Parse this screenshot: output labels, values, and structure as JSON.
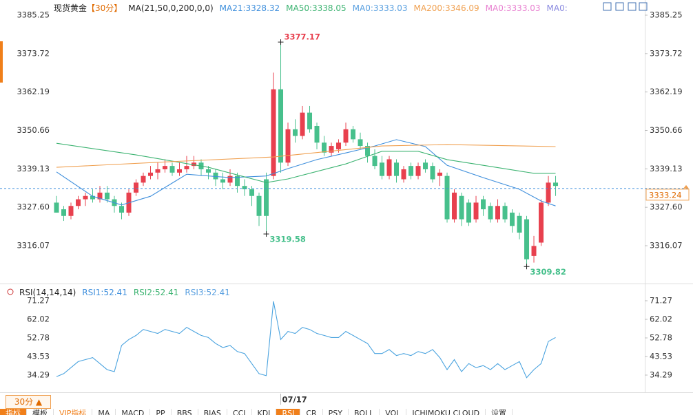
{
  "chart_data": [
    {
      "type": "candlestick",
      "title": "现货黄金",
      "period_label": "【30分】",
      "ma_label": "MA(21,50,0,200,0,0)",
      "legend": [
        {
          "text": "MA21:3328.32",
          "color": "#3f8fdc"
        },
        {
          "text": "MA50:3338.05",
          "color": "#3cb371"
        },
        {
          "text": "MA0:3333.03",
          "color": "#5aa0e0"
        },
        {
          "text": "MA200:3346.09",
          "color": "#f0a050"
        },
        {
          "text": "MA0:3333.03",
          "color": "#e87fd0"
        },
        {
          "text": "MA0:",
          "color": "#8a8ae0"
        }
      ],
      "up_color": "#e8404e",
      "down_color": "#47c08c",
      "candles": {
        "open": [
          3329,
          3327,
          3325,
          3328,
          3330,
          3331,
          3330,
          3332,
          3330,
          3328,
          3326,
          3332,
          3335,
          3337,
          3338,
          3339,
          3340,
          3338,
          3339,
          3340,
          3341,
          3339,
          3338,
          3336,
          3335,
          3337,
          3334,
          3333,
          3331,
          3336,
          3337,
          3363,
          3341,
          3351,
          3349,
          3356,
          3352,
          3347,
          3344,
          3345,
          3347,
          3351,
          3348,
          3346,
          3343,
          3341,
          3337,
          3341,
          3336,
          3340,
          3337,
          3341,
          3340,
          3337,
          3337,
          3324,
          3331,
          3329,
          3324,
          3330,
          3328,
          3324,
          3328,
          3326,
          3325,
          3324,
          3313,
          3317,
          3329,
          3335
        ],
        "high": [
          3331,
          3328,
          3329,
          3331,
          3332,
          3333,
          3334,
          3334,
          3331,
          3329,
          3333,
          3336,
          3338,
          3340,
          3341,
          3342,
          3341,
          3341,
          3343,
          3343,
          3342,
          3340,
          3339,
          3338,
          3339,
          3338,
          3336,
          3334,
          3332,
          3338,
          3368,
          3377.17,
          3353,
          3354,
          3358,
          3358,
          3353,
          3349,
          3347,
          3348,
          3353,
          3352,
          3350,
          3347,
          3345,
          3343,
          3343,
          3342,
          3340,
          3341,
          3341,
          3342,
          3341,
          3339,
          3338,
          3333,
          3332,
          3330,
          3331,
          3331,
          3329,
          3330,
          3329,
          3327,
          3326,
          3325,
          3319,
          3330,
          3337,
          3337
        ],
        "low": [
          3326,
          3323.5,
          3324,
          3327,
          3328,
          3329,
          3329,
          3329,
          3326,
          3324,
          3325,
          3331,
          3334,
          3336,
          3336,
          3338,
          3337,
          3337,
          3338,
          3339,
          3337,
          3336,
          3334,
          3333,
          3334,
          3332,
          3331,
          3328,
          3322,
          3319.58,
          3336,
          3338,
          3340,
          3347,
          3348,
          3350,
          3345,
          3343,
          3343,
          3344,
          3346,
          3347,
          3345,
          3341,
          3339,
          3336,
          3336,
          3335,
          3335,
          3336,
          3336,
          3338,
          3335,
          3334,
          3323,
          3323,
          3322,
          3322,
          3323,
          3325,
          3323,
          3323,
          3323,
          3320,
          3318,
          3309.82,
          3311,
          3316,
          3328,
          3331
        ],
        "close": [
          3326,
          3325,
          3328,
          3330,
          3331,
          3330,
          3332,
          3330,
          3328,
          3326,
          3332,
          3335,
          3337,
          3338,
          3339,
          3340,
          3338,
          3339,
          3340,
          3341,
          3339,
          3338,
          3336,
          3335,
          3337,
          3334,
          3333,
          3331,
          3325,
          3325,
          3363,
          3341,
          3351,
          3349,
          3356,
          3351,
          3347,
          3344,
          3346,
          3347,
          3351,
          3348,
          3346,
          3343,
          3340,
          3337,
          3342,
          3337,
          3339,
          3337,
          3340,
          3339,
          3336,
          3338,
          3324,
          3332,
          3324,
          3323,
          3329,
          3327,
          3324,
          3328,
          3324,
          3322,
          3320,
          3312,
          3316,
          3329,
          3335,
          3334
        ]
      },
      "series": [
        {
          "color": "#3f8fdc",
          "x": [
            0,
            5,
            9,
            13,
            18,
            24,
            29,
            32,
            36,
            40,
            44,
            47,
            51,
            54,
            59,
            64,
            67,
            69
          ],
          "values": [
            3338.2,
            3330.9,
            3328.3,
            3330.9,
            3337.5,
            3336.5,
            3337,
            3339.2,
            3341.9,
            3343.9,
            3346,
            3347.9,
            3345.8,
            3340.2,
            3336.5,
            3333,
            3329.5,
            3328
          ]
        },
        {
          "color": "#3cb371",
          "x": [
            0,
            11,
            21,
            29,
            32,
            40,
            45,
            50,
            54,
            59,
            66,
            69
          ],
          "values": [
            3346.8,
            3343.3,
            3339.6,
            3335,
            3336.1,
            3340.6,
            3344.4,
            3344.4,
            3341.9,
            3340.2,
            3337.8,
            3337.8
          ]
        },
        {
          "color": "#f0a050",
          "x": [
            0,
            16,
            30,
            45,
            54,
            69
          ],
          "values": [
            3339.6,
            3341.3,
            3342.7,
            3346,
            3346.4,
            3345.8
          ]
        }
      ],
      "annotations": [
        {
          "x": 31,
          "value": 3377.17
        },
        {
          "x": 29,
          "value": 3319.58
        },
        {
          "x": 65,
          "value": 3309.82
        }
      ],
      "last_price": 3333.24,
      "xlim": [
        -7.81,
        81.33
      ],
      "ylim": [
        3305.13,
        3389.79
      ],
      "yticks": [
        3385.25,
        3373.72,
        3362.19,
        3350.66,
        3339.13,
        {
          "value": 3327.6,
          "label": "3327.60"
        },
        3316.07
      ]
    },
    {
      "type": "line",
      "title": "RSI(14,14,14)",
      "legend": [
        {
          "text": "RSI1:52.41",
          "color": "#3f8fdc"
        },
        {
          "text": "RSI2:52.41",
          "color": "#3cb371"
        },
        {
          "text": "RSI3:52.41",
          "color": "#5aa0e0"
        }
      ],
      "series": [
        {
          "color": "#4aa3df",
          "values": [
            33.5,
            35,
            38,
            41,
            42,
            43,
            40,
            37,
            36,
            49,
            52,
            54,
            57,
            56,
            55,
            57,
            56,
            55,
            58,
            56,
            54,
            53,
            50,
            48,
            49,
            46,
            45,
            40,
            35,
            34,
            71,
            52,
            56,
            55,
            58,
            57,
            55,
            54,
            53,
            53,
            56,
            54,
            52,
            50,
            45,
            45,
            47,
            44,
            45,
            44,
            46,
            45,
            47,
            43,
            37,
            42,
            36,
            40,
            38,
            39,
            37,
            40,
            37,
            39,
            41,
            33,
            37,
            40,
            51,
            53
          ]
        }
      ],
      "xlim": [
        -7.81,
        81.33
      ],
      "xticks": [
        {
          "value": 31,
          "label": "07/17"
        }
      ],
      "ylim": [
        25.73,
        78.8
      ],
      "yticks": [
        71.27,
        62.02,
        52.78,
        43.53,
        34.29
      ]
    }
  ],
  "toolbar": {
    "period_button": "30分 ▲",
    "tabs": [
      {
        "label": "指标",
        "style": "accent"
      },
      {
        "label": "模板"
      },
      {
        "label": "VIP指标",
        "style": "vip"
      },
      {
        "label": "MA"
      },
      {
        "label": "MACD"
      },
      {
        "label": "PP"
      },
      {
        "label": "BBS"
      },
      {
        "label": "BIAS"
      },
      {
        "label": "CCI"
      },
      {
        "label": "KDJ"
      },
      {
        "label": "RSI",
        "style": "active"
      },
      {
        "label": "CR"
      },
      {
        "label": "PSY"
      },
      {
        "label": "BOLL"
      },
      {
        "label": "VOL"
      },
      {
        "label": "ICHIMOKU CLOUD"
      },
      {
        "label": "设置"
      }
    ]
  }
}
